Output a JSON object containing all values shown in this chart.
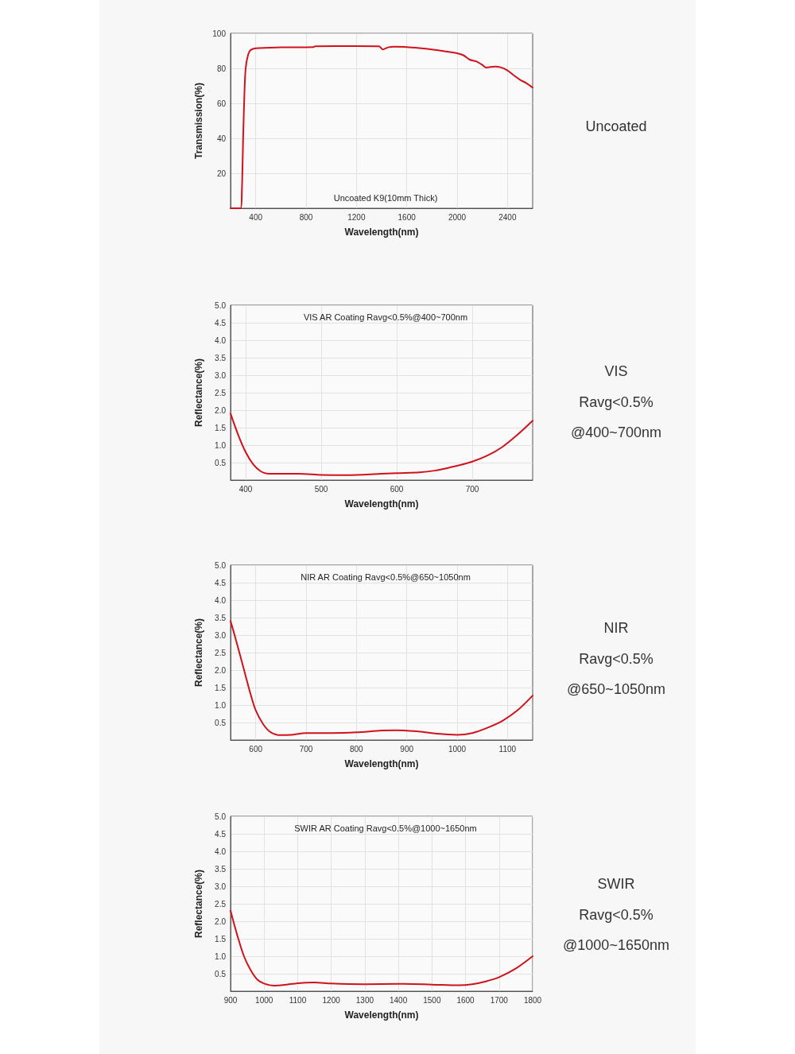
{
  "chart_data": [
    {
      "type": "line",
      "title": "Uncoated K9(10mm Thick)",
      "xlabel": "Wavelength(nm)",
      "ylabel": "Transmission(%)",
      "xlim": [
        200,
        2600
      ],
      "xticks": [
        400,
        800,
        1200,
        1600,
        2000,
        2400
      ],
      "ylim": [
        0,
        100
      ],
      "yticks": [
        20,
        40,
        60,
        80,
        100
      ],
      "grid": true,
      "series": [
        {
          "color": "#d0121b",
          "x": [
            200,
            280,
            290,
            300,
            310,
            320,
            340,
            360,
            400,
            600,
            860,
            870,
            1200,
            1380,
            1410,
            1450,
            1500,
            1600,
            1700,
            1800,
            1900,
            2000,
            2050,
            2100,
            2150,
            2200,
            2230,
            2300,
            2350,
            2400,
            2450,
            2500,
            2550,
            2600
          ],
          "values": [
            0,
            0,
            10,
            40,
            65,
            80,
            88,
            90.5,
            91.5,
            92,
            92.2,
            92.6,
            92.7,
            92.6,
            90.8,
            92,
            92.4,
            92.2,
            91.6,
            90.8,
            89.8,
            88.6,
            87.5,
            85,
            84,
            82,
            80.5,
            81,
            80.5,
            78.8,
            76,
            73.5,
            71.5,
            69
          ]
        }
      ]
    },
    {
      "type": "other",
      "annotations": [
        "Uncoated"
      ]
    },
    {
      "type": "line",
      "title": "VIS AR Coating Ravg<0.5%@400~700nm",
      "xlabel": "Wavelength(nm)",
      "ylabel": "Reflectance(%)",
      "xlim": [
        380,
        780
      ],
      "xticks": [
        400,
        500,
        600,
        700
      ],
      "ylim": [
        0,
        5
      ],
      "yticks": [
        0.5,
        {
          "value": 1,
          "label": "1.0"
        },
        1.5,
        {
          "value": 2,
          "label": "2.0"
        },
        2.5,
        {
          "value": 3,
          "label": "3.0"
        },
        3.5,
        {
          "value": 4,
          "label": "4.0"
        },
        4.5,
        {
          "value": 5,
          "label": "5.0"
        }
      ],
      "grid": true,
      "series": [
        {
          "color": "#d0121b",
          "x": [
            380,
            390,
            400,
            410,
            420,
            430,
            450,
            470,
            500,
            530,
            560,
            600,
            630,
            650,
            670,
            700,
            720,
            740,
            760,
            780
          ],
          "values": [
            1.9,
            1.3,
            0.8,
            0.45,
            0.25,
            0.18,
            0.18,
            0.18,
            0.15,
            0.14,
            0.16,
            0.2,
            0.22,
            0.27,
            0.36,
            0.53,
            0.7,
            0.95,
            1.3,
            1.7
          ]
        }
      ]
    },
    {
      "type": "other",
      "annotations": [
        "VIS",
        "Ravg<0.5%",
        "@400~700nm"
      ]
    },
    {
      "type": "line",
      "title": "NIR AR Coating Ravg<0.5%@650~1050nm",
      "xlabel": "Wavelength(nm)",
      "ylabel": "Reflectance(%)",
      "xlim": [
        550,
        1150
      ],
      "xticks": [
        600,
        700,
        800,
        900,
        1000,
        1100
      ],
      "ylim": [
        0,
        5
      ],
      "yticks": [
        0.5,
        {
          "value": 1,
          "label": "1.0"
        },
        1.5,
        {
          "value": 2,
          "label": "2.0"
        },
        2.5,
        {
          "value": 3,
          "label": "3.0"
        },
        3.5,
        {
          "value": 4,
          "label": "4.0"
        },
        4.5,
        {
          "value": 5,
          "label": "5.0"
        }
      ],
      "grid": true,
      "series": [
        {
          "color": "#d0121b",
          "x": [
            550,
            560,
            575,
            590,
            600,
            615,
            630,
            650,
            670,
            700,
            750,
            800,
            850,
            880,
            920,
            960,
            1000,
            1030,
            1060,
            1090,
            1120,
            1150
          ],
          "values": [
            3.4,
            2.9,
            2.1,
            1.3,
            0.85,
            0.45,
            0.22,
            0.14,
            0.15,
            0.2,
            0.2,
            0.22,
            0.27,
            0.28,
            0.25,
            0.18,
            0.15,
            0.2,
            0.35,
            0.55,
            0.85,
            1.27
          ]
        }
      ]
    },
    {
      "type": "other",
      "annotations": [
        "NIR",
        "Ravg<0.5%",
        "@650~1050nm"
      ]
    },
    {
      "type": "line",
      "title": "SWIR AR Coating Ravg<0.5%@1000~1650nm",
      "xlabel": "Wavelength(nm)",
      "ylabel": "Reflectance(%)",
      "xlim": [
        900,
        1800
      ],
      "xticks": [
        900,
        1000,
        1100,
        1200,
        1300,
        1400,
        1500,
        1600,
        1700,
        1800
      ],
      "ylim": [
        0,
        5
      ],
      "yticks": [
        0.5,
        {
          "value": 1,
          "label": "1.0"
        },
        1.5,
        {
          "value": 2,
          "label": "2.0"
        },
        2.5,
        {
          "value": 3,
          "label": "3.0"
        },
        3.5,
        {
          "value": 4,
          "label": "4.0"
        },
        4.5,
        {
          "value": 5,
          "label": "5.0"
        }
      ],
      "grid": true,
      "series": [
        {
          "color": "#d0121b",
          "x": [
            900,
            920,
            940,
            960,
            980,
            1000,
            1030,
            1060,
            1100,
            1150,
            1200,
            1300,
            1400,
            1500,
            1580,
            1620,
            1660,
            1700,
            1750,
            1800
          ],
          "values": [
            2.3,
            1.6,
            1.0,
            0.6,
            0.33,
            0.22,
            0.16,
            0.18,
            0.23,
            0.25,
            0.22,
            0.2,
            0.21,
            0.19,
            0.17,
            0.2,
            0.28,
            0.4,
            0.65,
            1.0
          ]
        }
      ]
    },
    {
      "type": "other",
      "annotations": [
        "SWIR",
        "Ravg<0.5%",
        "@1000~1650nm"
      ]
    }
  ]
}
